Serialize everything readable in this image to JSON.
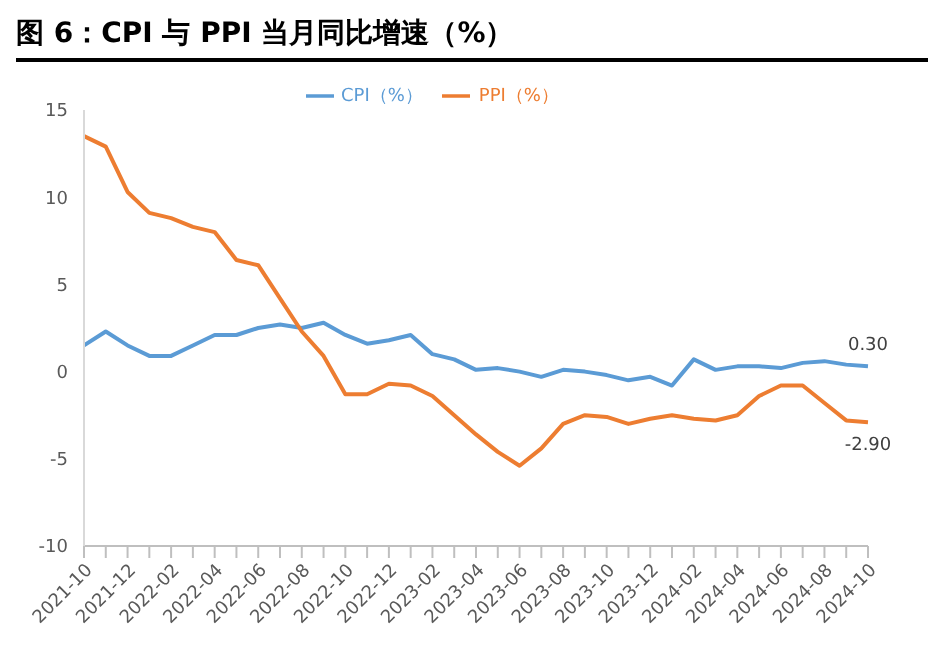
{
  "chart_data": {
    "type": "line",
    "title": "图 6：CPI 与 PPI 当月同比增速（%）",
    "categories": [
      "2021-10",
      null,
      "2021-12",
      null,
      "2022-02",
      null,
      "2022-04",
      null,
      "2022-06",
      null,
      "2022-08",
      null,
      "2022-10",
      null,
      "2022-12",
      null,
      "2023-02",
      null,
      "2023-04",
      null,
      "2023-06",
      null,
      "2023-08",
      null,
      "2023-10",
      null,
      "2023-12",
      null,
      "2024-02",
      null,
      "2024-04",
      null,
      "2024-06",
      null,
      "2024-08",
      null,
      "2024-10"
    ],
    "series": [
      {
        "name": "CPI（%）",
        "color": "#5b9bd5",
        "values": [
          1.5,
          2.3,
          1.5,
          0.9,
          0.9,
          1.5,
          2.1,
          2.1,
          2.5,
          2.7,
          2.5,
          2.8,
          2.1,
          1.6,
          1.8,
          2.1,
          1.0,
          0.7,
          0.1,
          0.2,
          0.0,
          -0.3,
          0.1,
          0.0,
          -0.2,
          -0.5,
          -0.3,
          -0.8,
          0.7,
          0.1,
          0.3,
          0.3,
          0.2,
          0.5,
          0.6,
          0.4,
          0.3
        ],
        "value_labels": [
          null,
          null,
          null,
          null,
          null,
          null,
          null,
          null,
          null,
          null,
          null,
          null,
          null,
          null,
          null,
          null,
          null,
          null,
          null,
          null,
          null,
          null,
          null,
          null,
          null,
          null,
          null,
          null,
          null,
          null,
          null,
          null,
          null,
          null,
          null,
          null,
          "0.30"
        ]
      },
      {
        "name": "PPI（%）",
        "color": "#ed7d31",
        "values": [
          13.5,
          12.9,
          10.3,
          9.1,
          8.8,
          8.3,
          8.0,
          6.4,
          6.1,
          4.2,
          2.3,
          0.9,
          -1.3,
          -1.3,
          -0.7,
          -0.8,
          -1.4,
          -2.5,
          -3.6,
          -4.6,
          -5.4,
          -4.4,
          -3.0,
          -2.5,
          -2.6,
          -3.0,
          -2.7,
          -2.5,
          -2.7,
          -2.8,
          -2.5,
          -1.4,
          -0.8,
          -0.8,
          -1.8,
          -2.8,
          -2.9
        ],
        "value_labels": [
          null,
          null,
          null,
          null,
          null,
          null,
          null,
          null,
          null,
          null,
          null,
          null,
          null,
          null,
          null,
          null,
          null,
          null,
          null,
          null,
          null,
          null,
          null,
          null,
          null,
          null,
          null,
          null,
          null,
          null,
          null,
          null,
          null,
          null,
          null,
          null,
          "-2.90"
        ]
      }
    ],
    "ylim": [
      -10,
      15
    ],
    "yticks": [
      -10,
      -5,
      0,
      5,
      10,
      15
    ],
    "grid": false,
    "legend": "top",
    "marker": "none",
    "line_style": "solid"
  }
}
